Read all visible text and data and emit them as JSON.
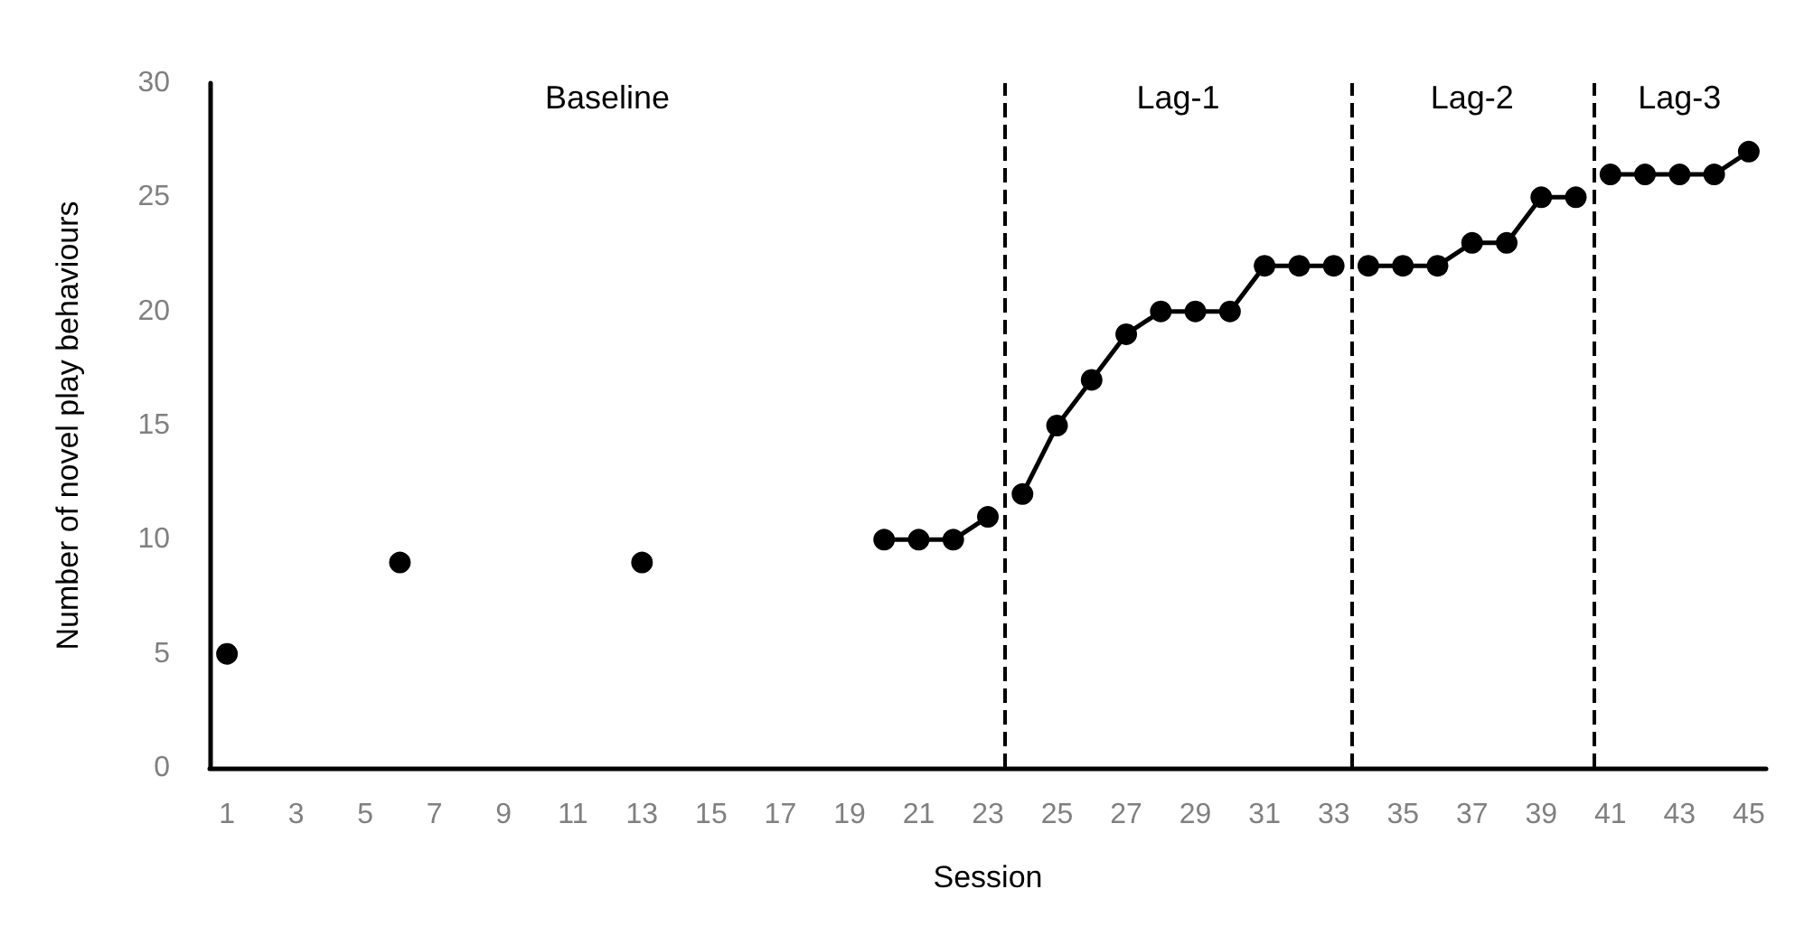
{
  "chart_data": {
    "type": "line",
    "xlabel": "Session",
    "ylabel": "Number of novel play behaviours",
    "xlim": [
      0.5,
      45.5
    ],
    "xticks": [
      1,
      3,
      5,
      7,
      9,
      11,
      13,
      15,
      17,
      19,
      21,
      23,
      25,
      27,
      29,
      31,
      33,
      35,
      37,
      39,
      41,
      43,
      45
    ],
    "ylim": [
      0,
      30
    ],
    "yticks": [
      0,
      5,
      10,
      15,
      20,
      25,
      30
    ],
    "grid": false,
    "marker": "circle",
    "line_style": "solid",
    "series": [
      {
        "color": "#000000",
        "x": [
          1,
          2,
          3,
          4,
          5,
          6,
          7,
          8,
          9,
          10,
          11,
          12,
          13,
          14,
          15,
          16,
          17,
          18,
          19,
          20,
          21,
          22,
          23
        ],
        "values": [
          5,
          null,
          null,
          null,
          null,
          9,
          null,
          null,
          null,
          null,
          null,
          null,
          9,
          null,
          null,
          null,
          null,
          null,
          null,
          10,
          10,
          10,
          11
        ]
      },
      {
        "color": "#000000",
        "x": [
          24,
          25,
          26,
          27,
          28,
          29,
          30,
          31,
          32,
          33
        ],
        "values": [
          12,
          15,
          17,
          19,
          20,
          20,
          20,
          22,
          22,
          22
        ]
      },
      {
        "color": "#000000",
        "x": [
          34,
          35,
          36,
          37,
          38,
          39,
          40
        ],
        "values": [
          22,
          22,
          22,
          23,
          23,
          25,
          25
        ]
      },
      {
        "color": "#000000",
        "x": [
          41,
          42,
          43,
          44,
          45
        ],
        "values": [
          26,
          26,
          26,
          26,
          27
        ]
      }
    ],
    "ref_lines": [
      {
        "axis": "x",
        "value": 23.5,
        "color": "#000000",
        "line_style": "dashed"
      },
      {
        "axis": "x",
        "value": 33.5,
        "color": "#000000",
        "line_style": "dashed"
      },
      {
        "axis": "x",
        "value": 40.5,
        "color": "#000000",
        "line_style": "dashed"
      }
    ],
    "annotations": [
      "Baseline",
      "Lag-1",
      "Lag-2",
      "Lag-3"
    ]
  }
}
